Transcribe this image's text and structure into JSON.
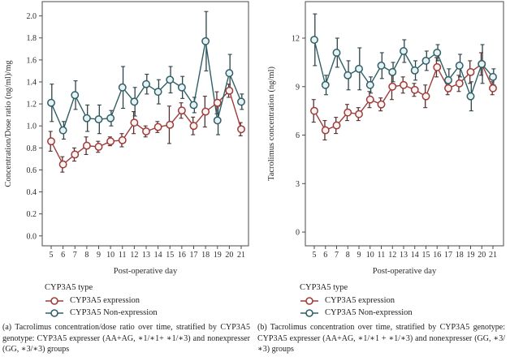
{
  "figure": {
    "panels": [
      {
        "id": "a",
        "legend_title": "CYP3A5 type",
        "caption": "(a) Tacrolimus concentration/dose ratio over time, stratified by CYP3A5 genotype: CYP3A5 expresser (AA+AG, ∗1/∗1+ ∗1/∗3) and nonexpresser (GG, ∗3/∗3) groups"
      },
      {
        "id": "b",
        "legend_title": "CYP3A5 type",
        "caption": "(b) Tacrolimus concentration over time, stratified by CYP3A5 genotype: CYP3A5 expresser (AA+AG, ∗1/∗1 + ∗1/∗3) and nonexpresser (GG, ∗3/∗3) groups"
      }
    ]
  },
  "chart_data": [
    {
      "type": "line",
      "panel": "a",
      "title": "",
      "xlabel": "Post-operative day",
      "ylabel": "Concentration/Dose ratio (ng/ml)/mg",
      "x": [
        5,
        6,
        7,
        8,
        9,
        10,
        11,
        12,
        13,
        14,
        15,
        16,
        17,
        18,
        19,
        20,
        21
      ],
      "ylim": [
        -0.09,
        2.13
      ],
      "yticks": [
        "0.0",
        "0.2",
        "0.4",
        "0.6",
        "0.8",
        "1.0",
        "1.2",
        "1.4",
        "1.6",
        "1.8",
        "2.0"
      ],
      "grid": false,
      "legend_position": "bottom",
      "series": [
        {
          "name": "CYP3A5 expression",
          "color": "#9e3b39",
          "marker_fill": "#fdf4f3",
          "err_color": "#553030",
          "values": [
            0.86,
            0.65,
            0.74,
            0.82,
            0.81,
            0.86,
            0.87,
            1.03,
            0.95,
            0.99,
            1.01,
            1.14,
            1.0,
            1.13,
            1.21,
            1.32,
            0.97
          ],
          "err": [
            0.09,
            0.07,
            0.06,
            0.08,
            0.05,
            0.04,
            0.06,
            0.1,
            0.05,
            0.05,
            0.17,
            0.07,
            0.08,
            0.14,
            0.1,
            0.06,
            0.06
          ]
        },
        {
          "name": "CYP3A5 Non-expression",
          "color": "#2f6067",
          "marker_fill": "#e8f1f3",
          "err_color": "#2c4348",
          "values": [
            1.21,
            0.96,
            1.28,
            1.07,
            1.06,
            1.07,
            1.35,
            1.22,
            1.38,
            1.31,
            1.42,
            1.35,
            1.19,
            1.77,
            1.05,
            1.48,
            1.22
          ],
          "err": [
            0.17,
            0.08,
            0.13,
            0.12,
            0.13,
            0.07,
            0.19,
            0.13,
            0.09,
            0.11,
            0.12,
            0.1,
            0.07,
            0.27,
            0.13,
            0.17,
            0.07
          ]
        }
      ]
    },
    {
      "type": "line",
      "panel": "b",
      "title": "",
      "xlabel": "Post-operative day",
      "ylabel": "Tacrolimus concentration (ng/ml)",
      "x": [
        5,
        6,
        7,
        8,
        9,
        10,
        11,
        12,
        13,
        14,
        15,
        16,
        17,
        18,
        19,
        20,
        21
      ],
      "ylim": [
        -0.85,
        14.26
      ],
      "yticks": [
        "0",
        "3",
        "6",
        "9",
        "12"
      ],
      "grid": false,
      "legend_position": "bottom",
      "series": [
        {
          "name": "CYP3A5 expression",
          "color": "#9e3b39",
          "marker_fill": "#fdf4f3",
          "err_color": "#553030",
          "values": [
            7.5,
            6.3,
            6.6,
            7.4,
            7.3,
            8.2,
            7.9,
            9.0,
            9.1,
            8.8,
            8.4,
            10.2,
            8.9,
            9.2,
            9.9,
            10.4,
            8.9
          ],
          "err": [
            0.7,
            0.6,
            0.5,
            0.5,
            0.4,
            0.5,
            0.4,
            0.8,
            0.5,
            0.4,
            0.7,
            0.6,
            0.4,
            0.5,
            0.7,
            0.7,
            0.4
          ]
        },
        {
          "name": "CYP3A5 Non-expression",
          "color": "#2f6067",
          "marker_fill": "#e8f1f3",
          "err_color": "#2c4348",
          "values": [
            11.9,
            9.1,
            11.1,
            9.7,
            10.1,
            9.1,
            10.3,
            9.9,
            11.2,
            10.0,
            10.6,
            11.1,
            9.4,
            10.3,
            8.4,
            10.4,
            9.6
          ],
          "err": [
            1.6,
            0.6,
            0.9,
            0.9,
            1.3,
            0.5,
            0.8,
            0.6,
            0.7,
            0.6,
            0.6,
            0.5,
            0.7,
            0.7,
            0.9,
            1.2,
            0.5
          ]
        }
      ]
    }
  ]
}
